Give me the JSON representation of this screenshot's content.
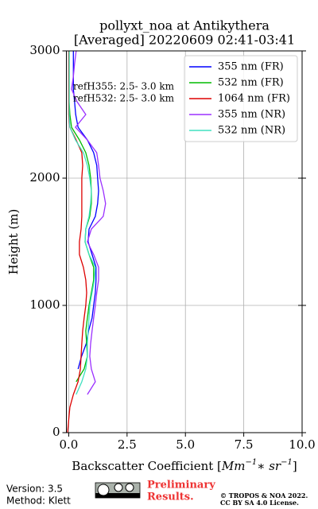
{
  "chart_data": {
    "type": "line",
    "title": [
      "pollyxt_noa at Antikythera",
      "[Averaged] 20220609 02:41-03:41"
    ],
    "xlabel": [
      "Backscatter Coefficient [",
      "Mm",
      "−1",
      "∗ sr",
      "−1",
      "]"
    ],
    "ylabel": "Height (m)",
    "xlim": [
      -0.1,
      10
    ],
    "ylim": [
      0,
      3000
    ],
    "xticks": [
      {
        "value": 0,
        "label": "0.0"
      },
      {
        "value": 2.5,
        "label": "2.5"
      },
      {
        "value": 5,
        "label": "5.0"
      },
      {
        "value": 7.5,
        "label": "7.5"
      },
      {
        "value": 10,
        "label": "10.0"
      }
    ],
    "yticks": [
      0,
      1000,
      2000,
      3000
    ],
    "grid": true,
    "legend": "upper right",
    "annotations": [
      "refH355:  2.5- 3.0 km",
      "refH532:  2.5- 3.0 km"
    ],
    "heights": [
      0,
      100,
      200,
      300,
      400,
      500,
      600,
      700,
      800,
      900,
      1000,
      1100,
      1200,
      1300,
      1400,
      1500,
      1600,
      1700,
      1800,
      1900,
      2000,
      2100,
      2200,
      2300,
      2400,
      2500,
      2600,
      2700,
      2800,
      2900,
      3000
    ],
    "series": [
      {
        "name": "355 nm (FR)",
        "color": "#0000ff",
        "values": [
          null,
          null,
          null,
          null,
          null,
          0.4,
          0.55,
          0.75,
          0.85,
          1.0,
          1.07,
          1.14,
          1.17,
          1.17,
          1.0,
          0.83,
          0.87,
          1.14,
          1.24,
          1.28,
          1.24,
          1.2,
          1.07,
          0.8,
          0.4,
          0.3,
          0.25,
          0.2,
          0.2,
          0.2,
          0.2
        ]
      },
      {
        "name": "532 nm (FR)",
        "color": "#00bb00",
        "values": [
          null,
          null,
          null,
          null,
          0.32,
          0.66,
          0.8,
          0.77,
          0.73,
          0.8,
          0.87,
          0.97,
          1.07,
          1.07,
          0.87,
          0.7,
          0.73,
          0.9,
          0.97,
          0.97,
          0.94,
          0.87,
          0.73,
          0.46,
          0.12,
          0.05,
          0.02,
          0.02,
          0.02,
          0.02,
          0.02
        ]
      },
      {
        "name": "1064 nm (FR)",
        "color": "#dd0000",
        "values": [
          -0.05,
          0,
          0.05,
          0.2,
          0.4,
          0.5,
          0.53,
          0.56,
          0.6,
          0.66,
          0.73,
          0.77,
          0.73,
          0.63,
          0.46,
          0.46,
          0.53,
          0.56,
          0.56,
          0.56,
          0.56,
          0.6,
          0.56,
          0.32,
          0.05,
          0,
          0,
          0,
          0,
          0,
          0
        ]
      },
      {
        "name": "355 nm (NR)",
        "color": "#9b30ff",
        "values": [
          null,
          null,
          null,
          0.8,
          1.14,
          0.97,
          0.9,
          0.94,
          1.0,
          1.07,
          1.14,
          1.2,
          1.28,
          1.28,
          1.07,
          0.8,
          0.97,
          1.48,
          1.58,
          1.48,
          1.34,
          1.28,
          1.2,
          0.8,
          0.29,
          0.73,
          0.36,
          0.12,
          0.2,
          0.25,
          0.32
        ]
      },
      {
        "name": "532 nm (NR)",
        "color": "#40e0c0",
        "values": [
          null,
          null,
          null,
          0.32,
          0.56,
          0.73,
          0.8,
          0.8,
          0.83,
          0.87,
          0.9,
          1.0,
          1.1,
          1.14,
          0.87,
          0.7,
          0.73,
          0.87,
          0.94,
          0.97,
          0.9,
          0.8,
          0.63,
          0.29,
          0.05,
          0.02,
          0.02,
          0.02,
          0.02,
          0.02,
          0.02
        ]
      }
    ]
  },
  "footer": {
    "version": "Version: 3.5",
    "method": "Method: Klett",
    "status": [
      "Preliminary",
      "Results."
    ],
    "copyright": "© TROPOS & NOA 2022.",
    "license": "CC BY SA 4.0 License."
  }
}
